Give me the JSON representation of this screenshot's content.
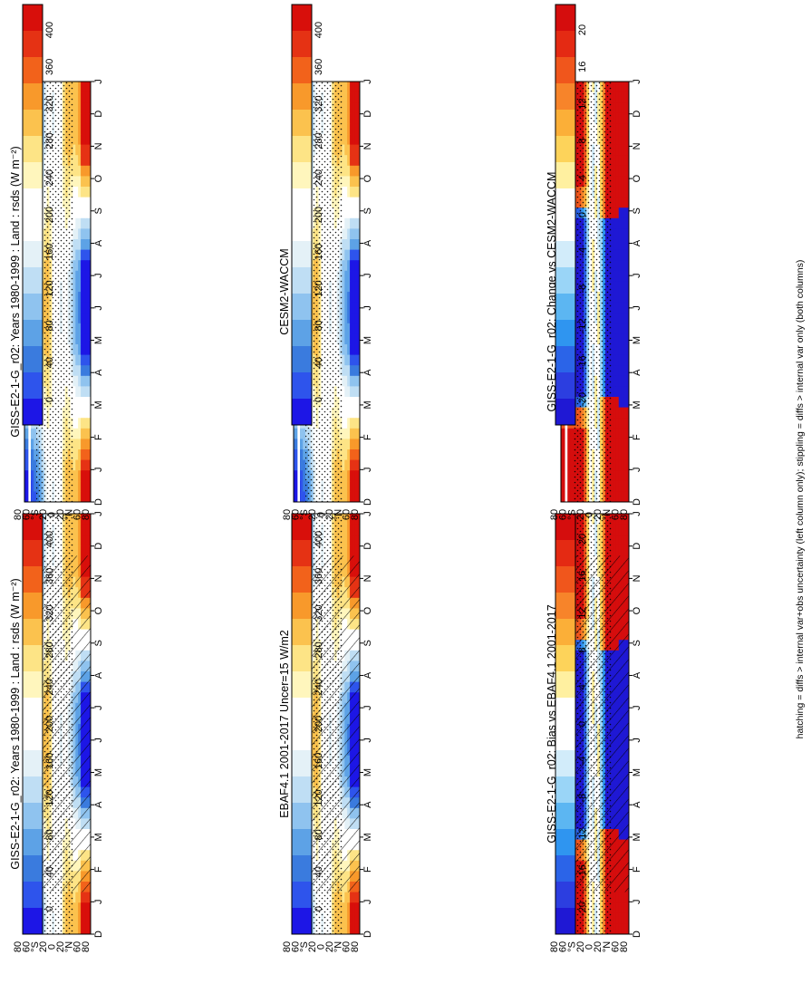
{
  "footer_note": "hatching = diffs > internal var+obs uncertainty (left column only); stippling = diffs > internal var only (both columns)",
  "palettes": {
    "absolute": [
      "#1d16e6",
      "#2e54ec",
      "#3a7bde",
      "#5da2e6",
      "#8fc3ef",
      "#bfdef4",
      "#e4f1f7",
      "#ffffff",
      "#ffffff",
      "#fff6bd",
      "#fde486",
      "#fbc24e",
      "#f8992b",
      "#f2621b",
      "#e53214",
      "#d80f0b"
    ],
    "difference": [
      "#1f18d4",
      "#2c3ee0",
      "#2b64e8",
      "#2f95f0",
      "#5cb6f2",
      "#9ad5f7",
      "#d2ecfa",
      "#ffffff",
      "#ffffff",
      "#fff0a0",
      "#fdd35a",
      "#fbaf38",
      "#f7842a",
      "#f0561c",
      "#e42a13",
      "#d50d0d"
    ]
  },
  "chart_data": [
    {
      "type": "heatmap",
      "panel": "left-top",
      "title": "GISS-E2-1-G_r02: Years 1980-1999 : Land : rsds (W m⁻²)",
      "x_ticks": [
        "D",
        "J",
        "F",
        "M",
        "A",
        "M",
        "J",
        "J",
        "A",
        "S",
        "O",
        "N",
        "D",
        "J"
      ],
      "y_ticks": [
        "80",
        "60",
        "°N",
        "20",
        "0",
        "20",
        "°S",
        "60",
        "80"
      ],
      "colorbar_ticks": [
        "400",
        "360",
        "320",
        "280",
        "240",
        "200",
        "160",
        "120",
        "80",
        "40",
        "0"
      ],
      "colorbar_range": [
        0,
        420
      ],
      "palette": "absolute",
      "field": "absolute",
      "hatching": true,
      "stippling": true
    },
    {
      "type": "heatmap",
      "panel": "right-top",
      "title": "GISS-E2-1-G_r02: Years 1980-1999 : Land : rsds (W m⁻²)",
      "x_ticks": [
        "D",
        "J",
        "F",
        "M",
        "A",
        "M",
        "J",
        "J",
        "A",
        "S",
        "O",
        "N",
        "D",
        "J"
      ],
      "y_ticks": [
        "80",
        "60",
        "°N",
        "20",
        "0",
        "20",
        "°S",
        "60",
        "80"
      ],
      "colorbar_ticks": [
        "400",
        "360",
        "320",
        "280",
        "240",
        "200",
        "160",
        "120",
        "80",
        "40",
        "0"
      ],
      "colorbar_range": [
        0,
        420
      ],
      "palette": "absolute",
      "field": "absolute",
      "hatching": false,
      "stippling": true
    },
    {
      "type": "heatmap",
      "panel": "left-middle",
      "title": "EBAF4.1 2001-2017 Uncer=15 W/m2",
      "x_ticks": [
        "D",
        "J",
        "F",
        "M",
        "A",
        "M",
        "J",
        "J",
        "A",
        "S",
        "O",
        "N",
        "D",
        "J"
      ],
      "y_ticks": [
        "80",
        "60",
        "°N",
        "20",
        "0",
        "20",
        "°S",
        "60",
        "80"
      ],
      "colorbar_ticks": [
        "400",
        "360",
        "320",
        "280",
        "240",
        "200",
        "160",
        "120",
        "80",
        "40",
        "0"
      ],
      "colorbar_range": [
        0,
        420
      ],
      "palette": "absolute",
      "field": "absolute",
      "hatching": true,
      "stippling": true
    },
    {
      "type": "heatmap",
      "panel": "right-middle",
      "title": "CESM2-WACCM",
      "x_ticks": [
        "D",
        "J",
        "F",
        "M",
        "A",
        "M",
        "J",
        "J",
        "A",
        "S",
        "O",
        "N",
        "D",
        "J"
      ],
      "y_ticks": [
        "80",
        "60",
        "°N",
        "20",
        "0",
        "20",
        "°S",
        "60",
        "80"
      ],
      "colorbar_ticks": [
        "400",
        "360",
        "320",
        "280",
        "240",
        "200",
        "160",
        "120",
        "80",
        "40",
        "0"
      ],
      "colorbar_range": [
        0,
        420
      ],
      "palette": "absolute",
      "field": "absolute",
      "hatching": false,
      "stippling": true
    },
    {
      "type": "heatmap",
      "panel": "left-bottom",
      "title": "GISS-E2-1-G_r02: Bias vs EBAF4.1 2001-2017",
      "x_ticks": [
        "D",
        "J",
        "F",
        "M",
        "A",
        "M",
        "J",
        "J",
        "A",
        "S",
        "O",
        "N",
        "D",
        "J"
      ],
      "y_ticks": [
        "80",
        "60",
        "°N",
        "20",
        "0",
        "20",
        "°S",
        "60",
        "80"
      ],
      "colorbar_ticks": [
        "20",
        "16",
        "12",
        "8",
        "4",
        "0",
        "-4",
        "-8",
        "-12",
        "-16",
        "-20"
      ],
      "colorbar_range": [
        -22,
        22
      ],
      "palette": "difference",
      "field": "bias",
      "hatching": true,
      "stippling": true
    },
    {
      "type": "heatmap",
      "panel": "right-bottom",
      "title": "GISS-E2-1-G_r02: Change vs CESM2-WACCM",
      "x_ticks": [
        "D",
        "J",
        "F",
        "M",
        "A",
        "M",
        "J",
        "J",
        "A",
        "S",
        "O",
        "N",
        "D",
        "J"
      ],
      "y_ticks": [
        "80",
        "60",
        "°N",
        "20",
        "0",
        "20",
        "°S",
        "60",
        "80"
      ],
      "colorbar_ticks": [
        "20",
        "16",
        "12",
        "8",
        "4",
        "0",
        "-4",
        "-8",
        "-12",
        "-16",
        "-20"
      ],
      "colorbar_range": [
        -22,
        22
      ],
      "palette": "difference",
      "field": "change",
      "hatching": false,
      "stippling": true
    }
  ]
}
